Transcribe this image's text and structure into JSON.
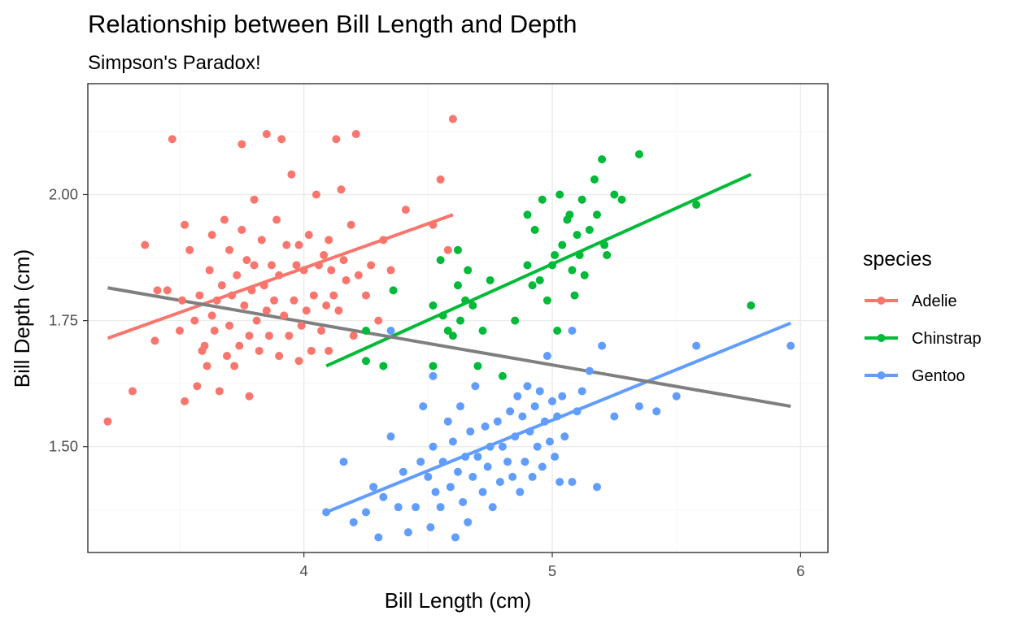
{
  "chart_data": {
    "type": "scatter",
    "title": "Relationship between Bill Length and Depth",
    "subtitle": "Simpson's Paradox!",
    "xlabel": "Bill Length (cm)",
    "ylabel": "Bill Depth (cm)",
    "xlim": [
      3.13,
      6.11
    ],
    "ylim": [
      1.29,
      2.22
    ],
    "x_ticks": [
      4,
      5,
      6
    ],
    "x_tick_labels": [
      "4",
      "5",
      "6"
    ],
    "y_ticks": [
      1.5,
      1.75,
      2.0
    ],
    "y_tick_labels": [
      "1.50",
      "1.75",
      "2.00"
    ],
    "grid": true,
    "legend": {
      "title": "species",
      "position": "right"
    },
    "series": [
      {
        "name": "Adelie",
        "color": "#F8766D",
        "fit": [
          [
            3.21,
            1.715
          ],
          [
            4.6,
            1.96
          ]
        ],
        "points": [
          [
            3.21,
            1.55
          ],
          [
            3.31,
            1.61
          ],
          [
            3.36,
            1.9
          ],
          [
            3.4,
            1.71
          ],
          [
            3.41,
            1.81
          ],
          [
            3.45,
            1.81
          ],
          [
            3.47,
            2.11
          ],
          [
            3.5,
            1.73
          ],
          [
            3.51,
            1.79
          ],
          [
            3.52,
            1.94
          ],
          [
            3.52,
            1.59
          ],
          [
            3.54,
            1.89
          ],
          [
            3.56,
            1.75
          ],
          [
            3.57,
            1.62
          ],
          [
            3.58,
            1.8
          ],
          [
            3.59,
            1.69
          ],
          [
            3.6,
            1.7
          ],
          [
            3.61,
            1.66
          ],
          [
            3.62,
            1.85
          ],
          [
            3.63,
            1.76
          ],
          [
            3.63,
            1.92
          ],
          [
            3.64,
            1.73
          ],
          [
            3.65,
            1.79
          ],
          [
            3.66,
            1.61
          ],
          [
            3.67,
            1.82
          ],
          [
            3.68,
            1.95
          ],
          [
            3.69,
            1.68
          ],
          [
            3.7,
            1.74
          ],
          [
            3.7,
            1.89
          ],
          [
            3.71,
            1.8
          ],
          [
            3.72,
            1.66
          ],
          [
            3.73,
            1.84
          ],
          [
            3.74,
            1.7
          ],
          [
            3.75,
            1.93
          ],
          [
            3.75,
            2.1
          ],
          [
            3.76,
            1.78
          ],
          [
            3.77,
            1.87
          ],
          [
            3.78,
            1.72
          ],
          [
            3.78,
            1.6
          ],
          [
            3.79,
            1.81
          ],
          [
            3.8,
            1.99
          ],
          [
            3.8,
            1.86
          ],
          [
            3.81,
            1.75
          ],
          [
            3.82,
            1.69
          ],
          [
            3.83,
            1.91
          ],
          [
            3.84,
            1.82
          ],
          [
            3.85,
            1.77
          ],
          [
            3.85,
            2.12
          ],
          [
            3.86,
            1.72
          ],
          [
            3.87,
            1.86
          ],
          [
            3.88,
            1.79
          ],
          [
            3.89,
            1.95
          ],
          [
            3.9,
            1.68
          ],
          [
            3.9,
            1.84
          ],
          [
            3.91,
            2.11
          ],
          [
            3.92,
            1.76
          ],
          [
            3.93,
            1.9
          ],
          [
            3.94,
            1.72
          ],
          [
            3.95,
            2.04
          ],
          [
            3.96,
            1.79
          ],
          [
            3.97,
            1.86
          ],
          [
            3.98,
            1.67
          ],
          [
            3.98,
            1.9
          ],
          [
            3.99,
            1.74
          ],
          [
            4.0,
            1.85
          ],
          [
            4.01,
            1.77
          ],
          [
            4.02,
            1.92
          ],
          [
            4.03,
            1.69
          ],
          [
            4.04,
            1.8
          ],
          [
            4.05,
            2.0
          ],
          [
            4.06,
            1.86
          ],
          [
            4.07,
            1.73
          ],
          [
            4.08,
            1.88
          ],
          [
            4.09,
            1.78
          ],
          [
            4.1,
            1.91
          ],
          [
            4.1,
            1.69
          ],
          [
            4.11,
            1.85
          ],
          [
            4.12,
            1.8
          ],
          [
            4.13,
            2.11
          ],
          [
            4.14,
            1.77
          ],
          [
            4.15,
            2.01
          ],
          [
            4.16,
            1.87
          ],
          [
            4.17,
            1.83
          ],
          [
            4.19,
            1.94
          ],
          [
            4.2,
            1.72
          ],
          [
            4.21,
            2.12
          ],
          [
            4.22,
            1.84
          ],
          [
            4.25,
            1.8
          ],
          [
            4.27,
            1.86
          ],
          [
            4.3,
            1.75
          ],
          [
            4.32,
            1.91
          ],
          [
            4.35,
            1.85
          ],
          [
            4.41,
            1.97
          ],
          [
            4.55,
            2.03
          ],
          [
            4.6,
            2.15
          ],
          [
            4.58,
            1.89
          ],
          [
            4.52,
            1.94
          ]
        ]
      },
      {
        "name": "Chinstrap",
        "color": "#00BA38",
        "fit": [
          [
            4.09,
            1.66
          ],
          [
            5.8,
            2.04
          ]
        ],
        "points": [
          [
            4.25,
            1.73
          ],
          [
            4.25,
            1.67
          ],
          [
            4.32,
            1.66
          ],
          [
            4.36,
            1.81
          ],
          [
            4.52,
            1.78
          ],
          [
            4.52,
            1.66
          ],
          [
            4.55,
            1.87
          ],
          [
            4.56,
            1.76
          ],
          [
            4.58,
            1.73
          ],
          [
            4.6,
            1.72
          ],
          [
            4.62,
            1.89
          ],
          [
            4.62,
            1.82
          ],
          [
            4.63,
            1.75
          ],
          [
            4.65,
            1.79
          ],
          [
            4.66,
            1.85
          ],
          [
            4.68,
            1.78
          ],
          [
            4.7,
            1.66
          ],
          [
            4.72,
            1.73
          ],
          [
            4.75,
            1.83
          ],
          [
            4.8,
            1.64
          ],
          [
            4.85,
            1.75
          ],
          [
            4.9,
            1.96
          ],
          [
            4.9,
            1.86
          ],
          [
            4.92,
            1.82
          ],
          [
            4.93,
            1.93
          ],
          [
            4.95,
            1.83
          ],
          [
            4.96,
            1.99
          ],
          [
            4.98,
            1.79
          ],
          [
            5.0,
            1.86
          ],
          [
            5.01,
            1.88
          ],
          [
            5.02,
            1.73
          ],
          [
            5.03,
            2.0
          ],
          [
            5.04,
            1.9
          ],
          [
            5.06,
            1.95
          ],
          [
            5.07,
            1.96
          ],
          [
            5.08,
            1.85
          ],
          [
            5.09,
            1.8
          ],
          [
            5.1,
            1.92
          ],
          [
            5.11,
            1.88
          ],
          [
            5.12,
            1.99
          ],
          [
            5.13,
            1.84
          ],
          [
            5.15,
            1.93
          ],
          [
            5.17,
            2.03
          ],
          [
            5.18,
            1.96
          ],
          [
            5.2,
            2.07
          ],
          [
            5.21,
            1.9
          ],
          [
            5.22,
            1.88
          ],
          [
            5.25,
            2.0
          ],
          [
            5.28,
            1.99
          ],
          [
            5.35,
            2.08
          ],
          [
            5.58,
            1.98
          ],
          [
            5.8,
            1.78
          ]
        ]
      },
      {
        "name": "Gentoo",
        "color": "#619CFF",
        "fit": [
          [
            4.09,
            1.37
          ],
          [
            5.96,
            1.745
          ]
        ],
        "points": [
          [
            4.09,
            1.37
          ],
          [
            4.16,
            1.47
          ],
          [
            4.2,
            1.35
          ],
          [
            4.25,
            1.37
          ],
          [
            4.28,
            1.42
          ],
          [
            4.3,
            1.32
          ],
          [
            4.32,
            1.4
          ],
          [
            4.35,
            1.52
          ],
          [
            4.38,
            1.38
          ],
          [
            4.4,
            1.45
          ],
          [
            4.42,
            1.33
          ],
          [
            4.45,
            1.38
          ],
          [
            4.47,
            1.47
          ],
          [
            4.48,
            1.58
          ],
          [
            4.5,
            1.44
          ],
          [
            4.51,
            1.34
          ],
          [
            4.52,
            1.5
          ],
          [
            4.53,
            1.41
          ],
          [
            4.55,
            1.38
          ],
          [
            4.56,
            1.47
          ],
          [
            4.58,
            1.55
          ],
          [
            4.59,
            1.42
          ],
          [
            4.6,
            1.51
          ],
          [
            4.61,
            1.32
          ],
          [
            4.62,
            1.45
          ],
          [
            4.63,
            1.58
          ],
          [
            4.64,
            1.39
          ],
          [
            4.65,
            1.48
          ],
          [
            4.66,
            1.35
          ],
          [
            4.67,
            1.53
          ],
          [
            4.68,
            1.44
          ],
          [
            4.69,
            1.62
          ],
          [
            4.7,
            1.48
          ],
          [
            4.72,
            1.41
          ],
          [
            4.73,
            1.54
          ],
          [
            4.74,
            1.46
          ],
          [
            4.75,
            1.5
          ],
          [
            4.76,
            1.38
          ],
          [
            4.78,
            1.55
          ],
          [
            4.79,
            1.43
          ],
          [
            4.8,
            1.5
          ],
          [
            4.82,
            1.47
          ],
          [
            4.83,
            1.57
          ],
          [
            4.84,
            1.44
          ],
          [
            4.85,
            1.52
          ],
          [
            4.86,
            1.6
          ],
          [
            4.87,
            1.41
          ],
          [
            4.88,
            1.56
          ],
          [
            4.89,
            1.47
          ],
          [
            4.9,
            1.62
          ],
          [
            4.91,
            1.53
          ],
          [
            4.92,
            1.44
          ],
          [
            4.93,
            1.58
          ],
          [
            4.94,
            1.5
          ],
          [
            4.95,
            1.61
          ],
          [
            4.96,
            1.46
          ],
          [
            4.97,
            1.55
          ],
          [
            4.98,
            1.68
          ],
          [
            4.99,
            1.51
          ],
          [
            5.0,
            1.59
          ],
          [
            5.01,
            1.48
          ],
          [
            5.02,
            1.56
          ],
          [
            5.03,
            1.43
          ],
          [
            5.04,
            1.6
          ],
          [
            5.05,
            1.52
          ],
          [
            5.08,
            1.43
          ],
          [
            5.1,
            1.57
          ],
          [
            5.12,
            1.61
          ],
          [
            5.15,
            1.65
          ],
          [
            5.18,
            1.42
          ],
          [
            5.2,
            1.7
          ],
          [
            5.25,
            1.56
          ],
          [
            5.35,
            1.58
          ],
          [
            5.42,
            1.57
          ],
          [
            5.5,
            1.6
          ],
          [
            5.58,
            1.7
          ],
          [
            5.96,
            1.7
          ],
          [
            4.35,
            1.73
          ],
          [
            4.52,
            1.64
          ],
          [
            5.08,
            1.73
          ]
        ]
      },
      {
        "name": "",
        "color": "#7F7F7F",
        "fit": [
          [
            3.21,
            1.815
          ],
          [
            5.96,
            1.58
          ]
        ],
        "points": []
      }
    ]
  }
}
